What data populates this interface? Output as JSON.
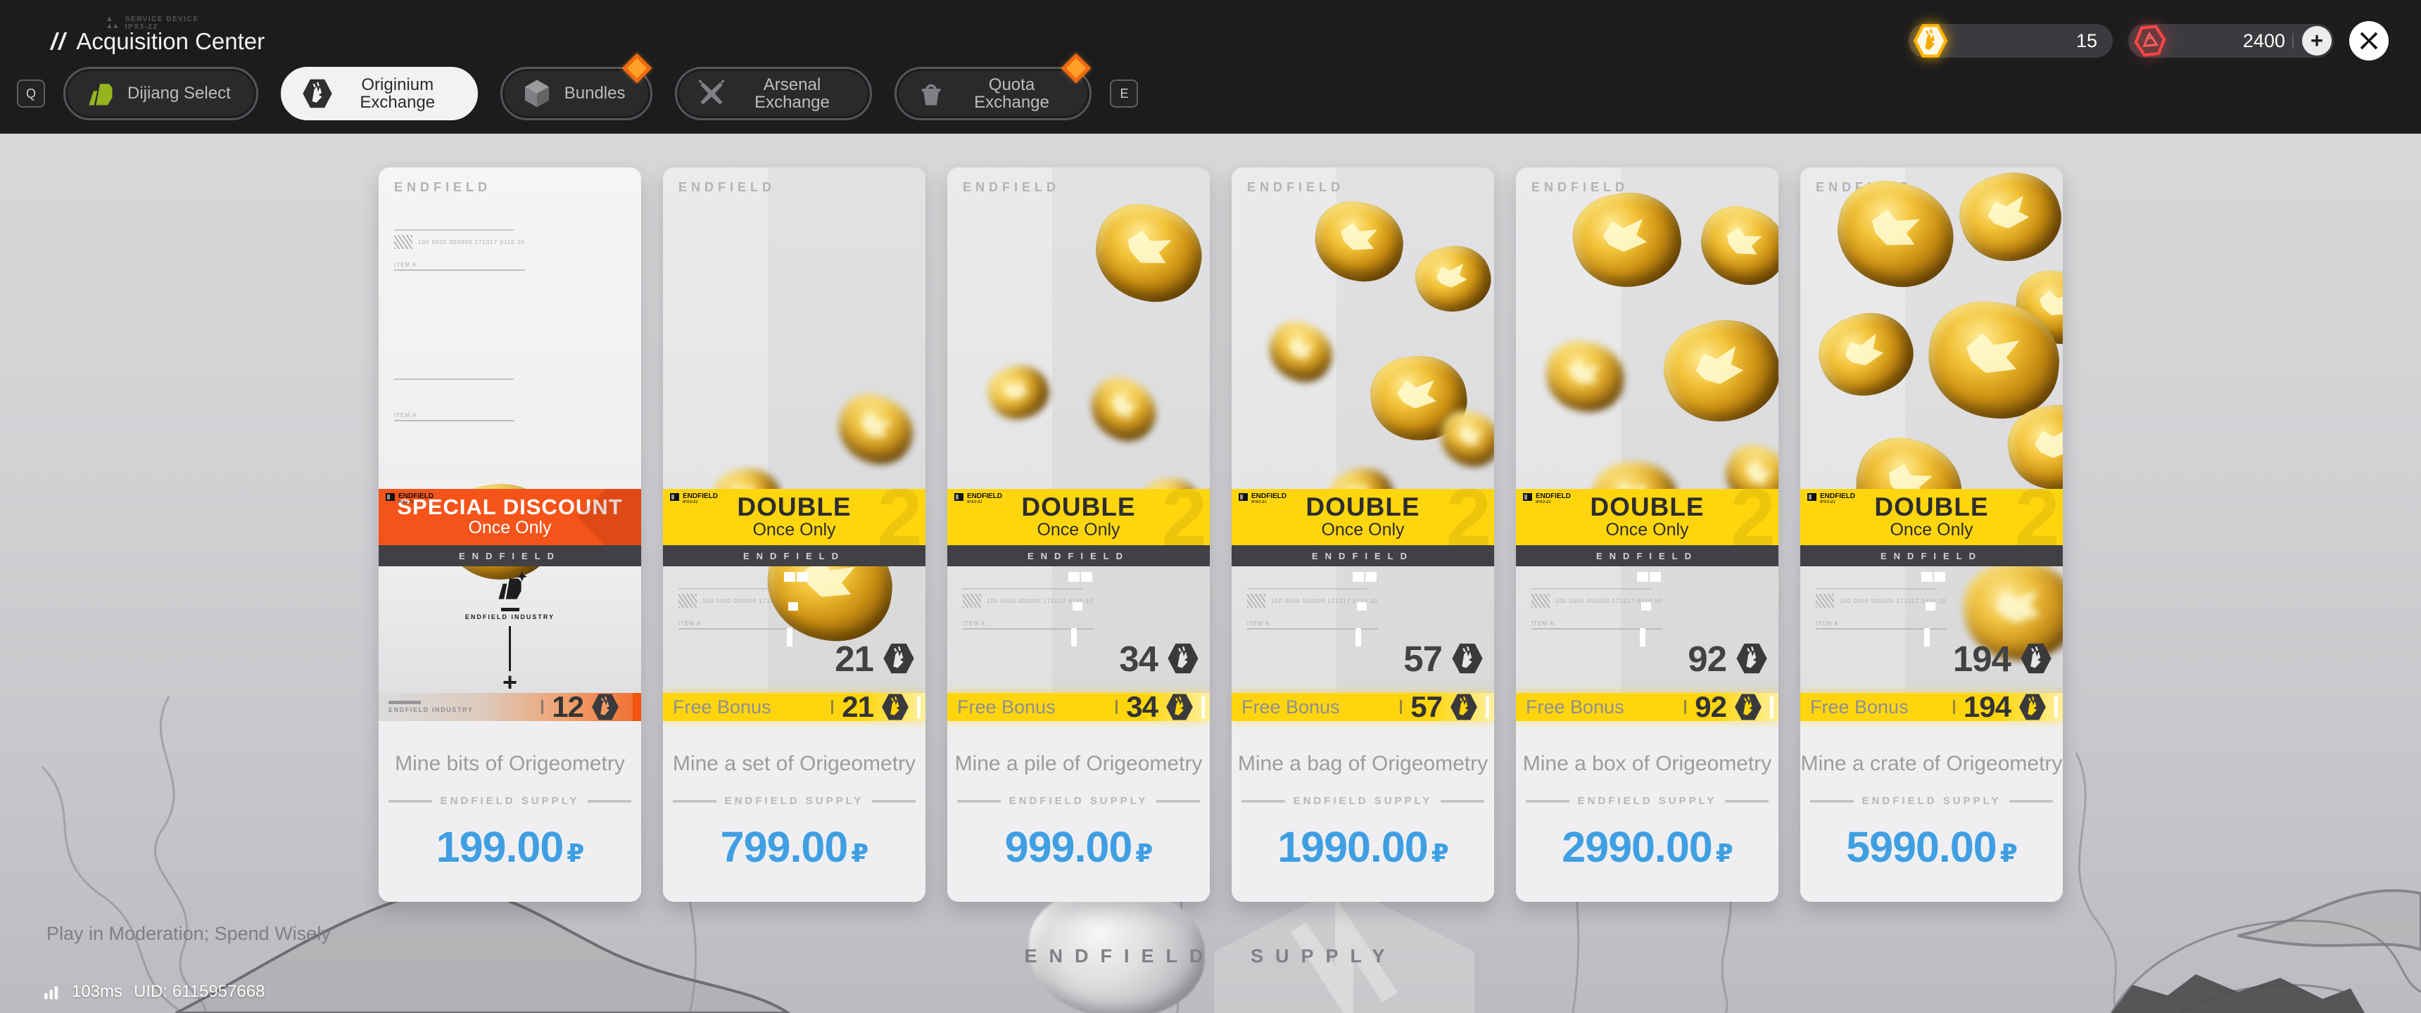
{
  "branding": {
    "game_logo": "ENDFIELD",
    "supply_divider": "ENDFIELD SUPPLY",
    "industry": "ENDFIELD INDUSTRY",
    "micro_digits": "100 0000 000000 171017 0110 10",
    "item_tag": "ITEM A",
    "banner_tag1": "ENDFIELD",
    "banner_tag2": "IPX3-21"
  },
  "header": {
    "device_line1": "SERVICE DEVICE",
    "device_line2": "IPX3-22",
    "title_slashes": "//",
    "title": "Acquisition Center",
    "key_hint_left": "Q",
    "key_hint_right": "E",
    "tabs": [
      {
        "id": "dijiang-select",
        "label": "Dijiang Select",
        "icon": "dijiang-icon",
        "active": false,
        "badge": false
      },
      {
        "id": "originium-exchange",
        "label": "Originium Exchange",
        "icon": "originium-coin-icon",
        "active": true,
        "badge": false
      },
      {
        "id": "bundles",
        "label": "Bundles",
        "icon": "bundle-box-icon",
        "active": false,
        "badge": true
      },
      {
        "id": "arsenal-exchange",
        "label": "Arsenal Exchange",
        "icon": "crossed-blades-icon",
        "active": false,
        "badge": false
      },
      {
        "id": "quota-exchange",
        "label": "Quota Exchange",
        "icon": "basket-icon",
        "active": false,
        "badge": true
      }
    ],
    "currency_primary": {
      "name": "originium",
      "value": "15"
    },
    "currency_secondary": {
      "name": "orundum",
      "value": "2400",
      "add_label": "+"
    }
  },
  "cards": [
    {
      "title": "Mine bits of Origeometry",
      "price": "199.00",
      "currency": "₽",
      "amount": "12",
      "banner": {
        "style": "special",
        "line1": "SPECIAL DISCOUNT",
        "line2": "Once Only"
      },
      "strip": {
        "type": "industry",
        "label": "ENDFIELD INDUSTRY"
      }
    },
    {
      "title": "Mine a set of Origeometry",
      "price": "799.00",
      "currency": "₽",
      "amount": "21",
      "banner": {
        "style": "double",
        "line1": "DOUBLE",
        "line2": "Once Only"
      },
      "strip": {
        "type": "bonus",
        "label": "Free Bonus",
        "value": "21"
      }
    },
    {
      "title": "Mine a pile of Origeometry",
      "price": "999.00",
      "currency": "₽",
      "amount": "34",
      "banner": {
        "style": "double",
        "line1": "DOUBLE",
        "line2": "Once Only"
      },
      "strip": {
        "type": "bonus",
        "label": "Free Bonus",
        "value": "34"
      }
    },
    {
      "title": "Mine a bag of Origeometry",
      "price": "1990.00",
      "currency": "₽",
      "amount": "57",
      "banner": {
        "style": "double",
        "line1": "DOUBLE",
        "line2": "Once Only"
      },
      "strip": {
        "type": "bonus",
        "label": "Free Bonus",
        "value": "57"
      }
    },
    {
      "title": "Mine a box of Origeometry",
      "price": "2990.00",
      "currency": "₽",
      "amount": "92",
      "banner": {
        "style": "double",
        "line1": "DOUBLE",
        "line2": "Once Only"
      },
      "strip": {
        "type": "bonus",
        "label": "Free Bonus",
        "value": "92"
      }
    },
    {
      "title": "Mine a crate of Origeometry",
      "price": "5990.00",
      "currency": "₽",
      "amount": "194",
      "banner": {
        "style": "double",
        "line1": "DOUBLE",
        "line2": "Once Only"
      },
      "strip": {
        "type": "bonus",
        "label": "Free Bonus",
        "value": "194"
      }
    }
  ],
  "background": {
    "watermark": "ENDFIELD SUPPLY"
  },
  "footer": {
    "notice": "Play in Moderation; Spend Wisely",
    "ping": "103ms",
    "uid": "UID: 6115957668"
  },
  "colors": {
    "accent_orange": "#f4541a",
    "accent_yellow": "#ffd60d",
    "price_blue": "#3f9fe2",
    "gold": "#ffb405",
    "red": "#ff4545",
    "header_bg": "#1c1c1e"
  }
}
